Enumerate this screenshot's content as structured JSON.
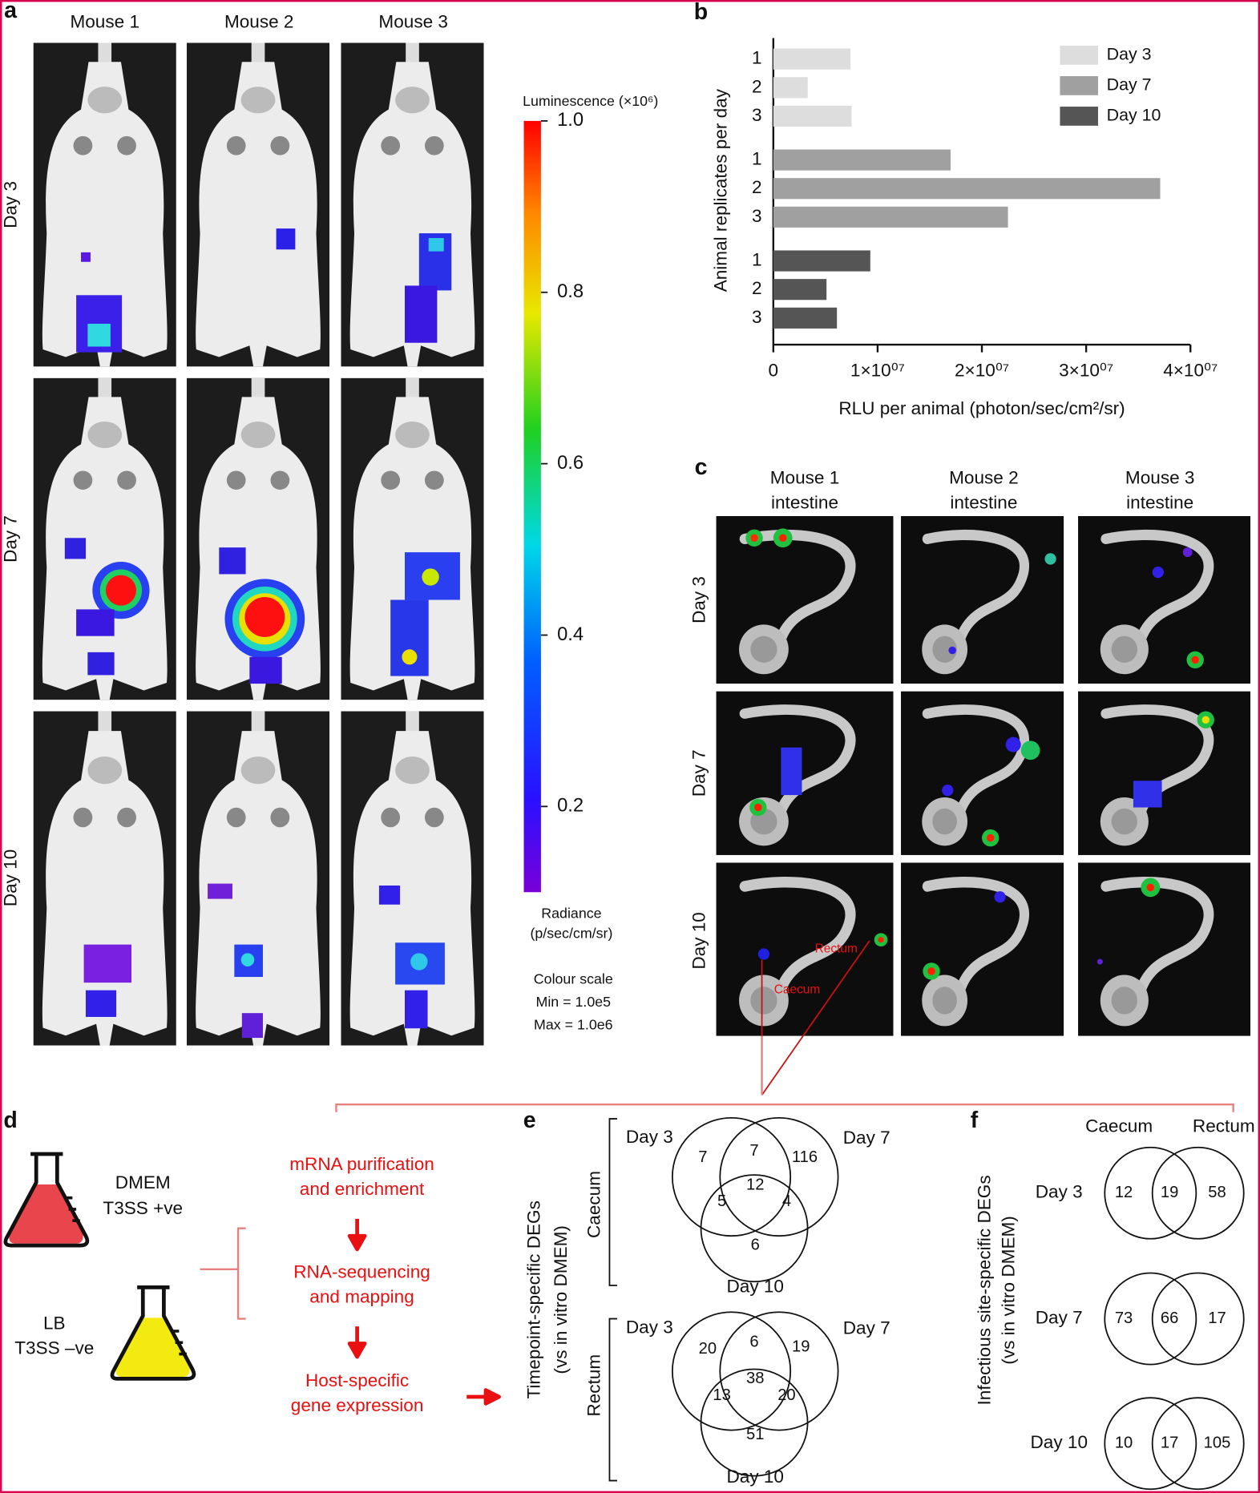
{
  "panel_labels": [
    "a",
    "b",
    "c",
    "d",
    "e",
    "f"
  ],
  "panel_a": {
    "columns": [
      "Mouse 1",
      "Mouse 2",
      "Mouse 3"
    ],
    "rows": [
      "Day 3",
      "Day 7",
      "Day 10"
    ]
  },
  "colorbar": {
    "title": "Luminescence (×10⁶)",
    "lim": [
      0.1,
      1.0
    ],
    "ticks": [
      {
        "value": 1.0,
        "label": "1.0"
      },
      0.8,
      0.6,
      0.4,
      0.2
    ],
    "units": [
      "Radiance",
      "(p/sec/cm/sr)"
    ],
    "scale": [
      "Colour scale",
      "Min = 1.0e5",
      "Max = 1.0e6"
    ]
  },
  "chart_data": {
    "type": "bar",
    "orientation": "horizontal",
    "categories": [
      "1",
      "2",
      "3"
    ],
    "series": [
      {
        "name": "Day 3",
        "color": "#dddddd",
        "values": [
          7400000,
          3300000,
          7500000
        ]
      },
      {
        "name": "Day 7",
        "color": "#a0a0a0",
        "values": [
          17000000,
          37100000,
          22500000
        ]
      },
      {
        "name": "Day 10",
        "color": "#555555",
        "values": [
          9300000,
          5100000,
          6100000
        ]
      }
    ],
    "xlim": [
      0,
      40000000
    ],
    "xticks": [
      0,
      {
        "value": 10000000,
        "label": "1×10⁰⁷"
      },
      {
        "value": 20000000,
        "label": "2×10⁰⁷"
      },
      {
        "value": 30000000,
        "label": "3×10⁰⁷"
      },
      {
        "value": 40000000,
        "label": "4×10⁰⁷"
      }
    ],
    "xlabel": "RLU per animal (photon/sec/cm²/sr)",
    "ylabel": "Animal replicates per day"
  },
  "panel_c": {
    "columns": [
      [
        "Mouse 1",
        "intestine"
      ],
      [
        "Mouse 2",
        "intestine"
      ],
      [
        "Mouse 3",
        "intestine"
      ]
    ],
    "rows": [
      "Day 3",
      "Day 7",
      "Day 10"
    ],
    "annotations": [
      "Rectum",
      "Caecum"
    ]
  },
  "panel_d": {
    "conditions": [
      [
        "DMEM",
        "T3SS +ve"
      ],
      [
        "LB",
        "T3SS –ve"
      ]
    ],
    "steps": [
      [
        "mRNA purification",
        "and enrichment"
      ],
      [
        "RNA-sequencing",
        "and mapping"
      ],
      [
        "Host-specific",
        "gene expression"
      ]
    ]
  },
  "panel_e": {
    "ylabel": [
      "Timepoint-specific DEGs",
      "(vs in vitro DMEM)"
    ],
    "groups": [
      {
        "name": "Caecum",
        "sets": [
          "Day 3",
          "Day 7",
          "Day 10"
        ],
        "regions": [
          "7",
          "7",
          "116",
          "12",
          "5",
          "4",
          "6"
        ]
      },
      {
        "name": "Rectum",
        "sets": [
          "Day 3",
          "Day 7",
          "Day 10"
        ],
        "regions": [
          "20",
          "6",
          "19",
          "38",
          "13",
          "20",
          "51"
        ]
      }
    ]
  },
  "panel_f": {
    "ylabel": [
      "Infectious site-specific DEGs",
      "(vs in vitro DMEM)"
    ],
    "sets": [
      "Caecum",
      "Rectum"
    ],
    "rows": [
      {
        "name": "Day 3",
        "regions": [
          "12",
          "19",
          "58"
        ]
      },
      {
        "name": "Day 7",
        "regions": [
          "73",
          "66",
          "17"
        ]
      },
      {
        "name": "Day 10",
        "regions": [
          "10",
          "17",
          "105"
        ]
      }
    ]
  }
}
